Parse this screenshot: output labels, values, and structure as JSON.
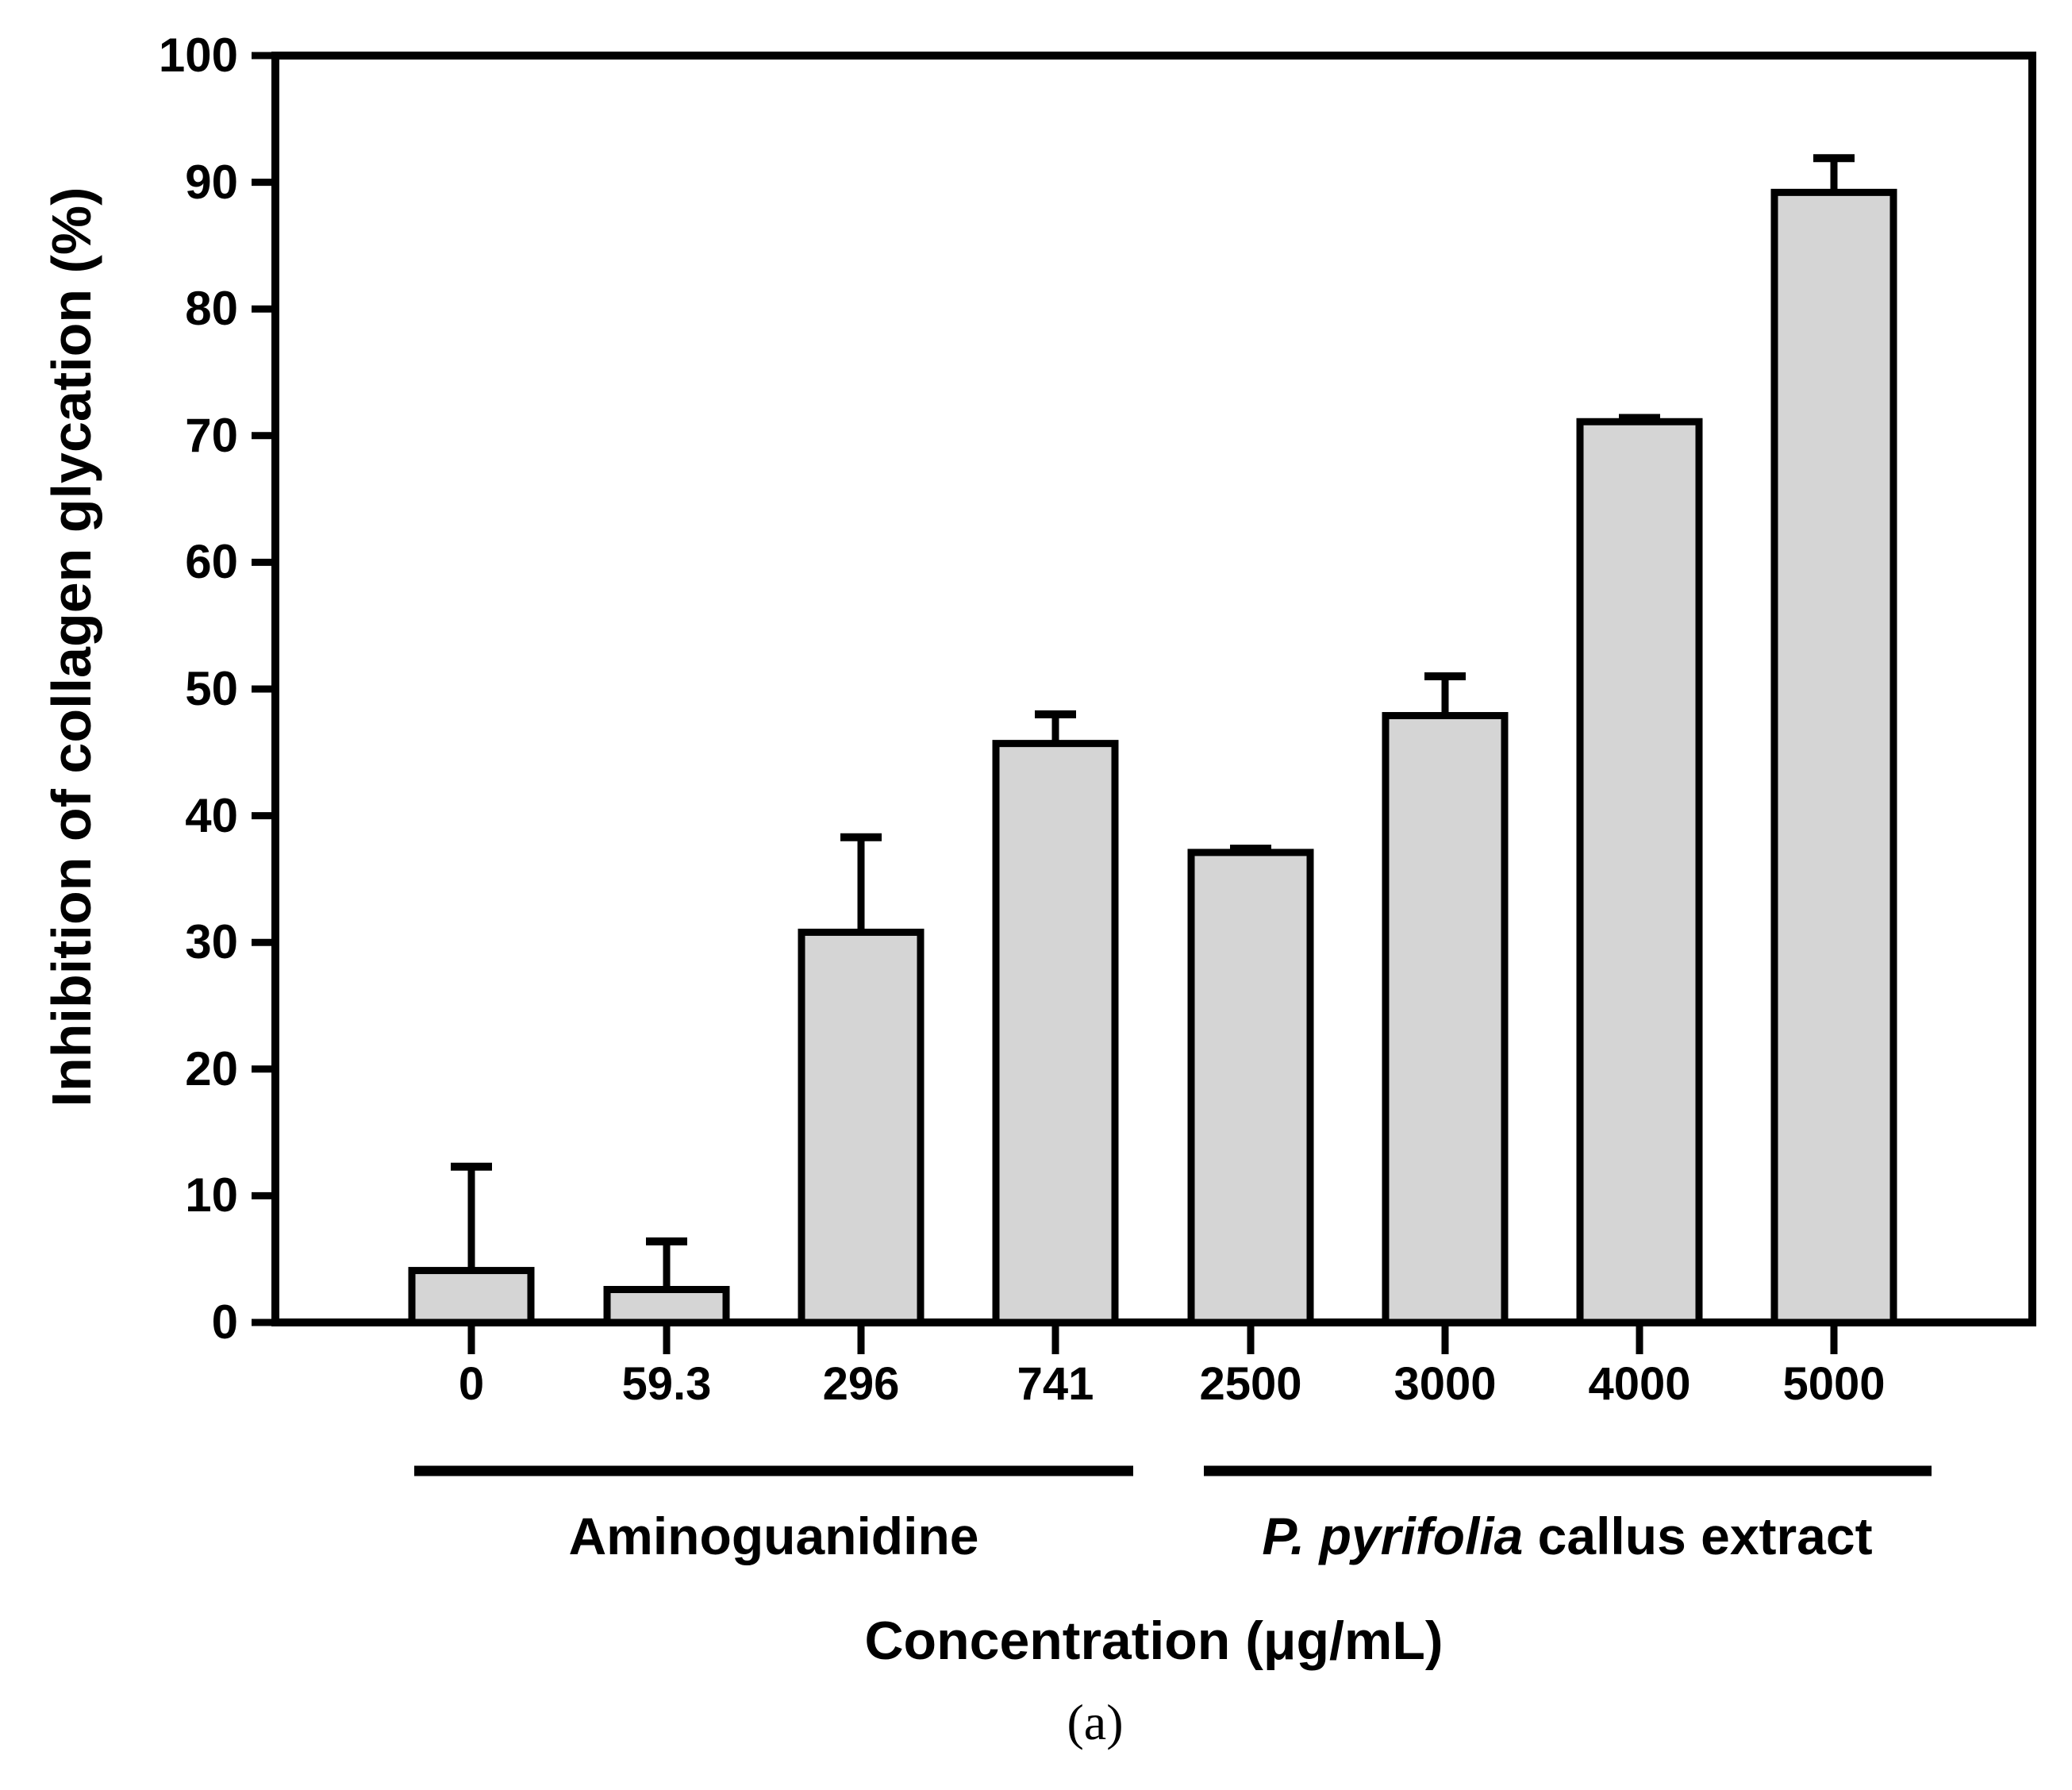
{
  "chart_data": {
    "type": "bar",
    "title": "",
    "ylabel": "Inhibition of collagen glycation (%)",
    "xlabel": "Concentration (μg/mL)",
    "panel_label": "(a)",
    "ylim": [
      0,
      100
    ],
    "y_ticks": [
      0,
      10,
      20,
      30,
      40,
      50,
      60,
      70,
      80,
      90,
      100
    ],
    "categories": [
      "0",
      "59.3",
      "296",
      "741",
      "2500",
      "3000",
      "4000",
      "5000"
    ],
    "values": [
      4.1,
      2.6,
      30.8,
      45.7,
      37.1,
      47.9,
      71.1,
      89.2
    ],
    "error_plus": [
      8.2,
      3.8,
      7.5,
      2.3,
      0.3,
      3.1,
      0.3,
      2.7
    ],
    "groups": [
      {
        "label_italic": "",
        "label": "Aminoguanidine",
        "categories": [
          "0",
          "59.3",
          "296",
          "741"
        ]
      },
      {
        "label_italic": "P. pyrifolia",
        "label": " callus extract",
        "categories": [
          "2500",
          "3000",
          "4000",
          "5000"
        ]
      }
    ],
    "bar_fill": "#d5d5d5",
    "bar_edge": "#000000",
    "axis_color": "#000000",
    "grid": false,
    "legend": false
  }
}
